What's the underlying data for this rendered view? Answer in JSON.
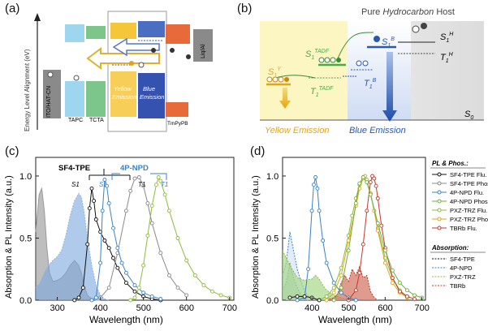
{
  "panel_a": {
    "label": "(a)",
    "ylabel": "Energy Level Alignment (eV)",
    "layers": [
      "ITO/HAT-CN",
      "TAPC",
      "TCTA",
      "Yellow",
      "Emission",
      "Blue",
      "Emission",
      "TmPyPB",
      "Liq/Al"
    ]
  },
  "panel_b": {
    "label": "(b)",
    "host_title_1": "Pure",
    "host_title_2": "Hydrocarbon",
    "host_title_3": "Host",
    "s1h": "S",
    "s1h_sub": "1",
    "s1h_sup": "H",
    "t1h": "T",
    "t1h_sub": "1",
    "t1h_sup": "H",
    "s1b": "S",
    "s1b_sub": "1",
    "s1b_sup": "B",
    "t1b": "T",
    "t1b_sub": "1",
    "t1b_sup": "B",
    "s1tadf": "S",
    "s1tadf_sub": "1",
    "s1tadf_sup": "TADF",
    "t1tadf": "T",
    "t1tadf_sub": "1",
    "t1tadf_sup": "TADF",
    "s1y": "S",
    "s1y_sub": "1",
    "s1y_sup": "Y",
    "s0": "S",
    "s0_sub": "0",
    "yellow_emission": "Yellow Emission",
    "blue_emission": "Blue Emission"
  },
  "panel_c": {
    "label": "(c)",
    "ylabel": "Absorption & PL Intensity (a.u.)",
    "xlabel": "Wavelength (nm)",
    "xticks": [
      "300",
      "400",
      "500",
      "600",
      "700"
    ],
    "yticks": [
      "0.0",
      "0.5",
      "1.0"
    ],
    "ann_sf4": "SF4-TPE",
    "ann_npd": "4P-NPD",
    "ann_s1_black": "S1",
    "ann_t1_black": "T1",
    "ann_s1_blue": "S1",
    "ann_t1_blue": "T1"
  },
  "panel_d": {
    "label": "(d)",
    "ylabel": "Absorption & PL Intensity (a.u.)",
    "xlabel": "Wavelength (nm)",
    "xticks": [
      "400",
      "500",
      "600",
      "700"
    ],
    "yticks": [
      "0.0",
      "0.5",
      "1.0"
    ],
    "legend_title1": "PL & Phos.:",
    "legend1": [
      "SF4-TPE Flu.",
      "SF4-TPE Phos.",
      "4P-NPD Flu.",
      "4P-NPD Phos.",
      "PXZ-TRZ Flu.",
      "PXZ-TRZ Phos.",
      "TBRb Flu."
    ],
    "legend_title2": "Absorption:",
    "legend2": [
      "SF4-TPE",
      "4P-NPD",
      "PXZ-TRZ",
      "TBRb"
    ]
  },
  "colors": {
    "sf4": "#111111",
    "sf4_phos": "#888888",
    "npd": "#3b82c4",
    "npd_phos": "#6fae3a",
    "pxz": "#8dbb3a",
    "pxz_phos": "#d9a820",
    "tbrb": "#c0392b"
  },
  "chart_data": [
    {
      "type": "line",
      "xlabel": "Wavelength (nm)",
      "ylabel": "Absorption & PL Intensity (a.u.)",
      "xlim": [
        250,
        710
      ],
      "ylim": [
        0,
        1.15
      ],
      "series": [
        {
          "name": "SF4-TPE Abs",
          "x": [
            250,
            258,
            264,
            270,
            276,
            282,
            290,
            300,
            310,
            320,
            330,
            340,
            350,
            356,
            362,
            370,
            380,
            390,
            400
          ],
          "y": [
            0.55,
            0.85,
            0.9,
            0.72,
            0.42,
            0.22,
            0.15,
            0.16,
            0.18,
            0.22,
            0.28,
            0.32,
            0.28,
            0.22,
            0.12,
            0.04,
            0.01,
            0,
            0
          ]
        },
        {
          "name": "4P-NPD Abs",
          "x": [
            250,
            260,
            270,
            280,
            290,
            300,
            310,
            320,
            330,
            340,
            350,
            356,
            362,
            370,
            380,
            390,
            400,
            410,
            420
          ],
          "y": [
            0.1,
            0.14,
            0.22,
            0.28,
            0.32,
            0.35,
            0.4,
            0.52,
            0.68,
            0.8,
            0.86,
            0.83,
            0.72,
            0.5,
            0.28,
            0.12,
            0.04,
            0.01,
            0
          ]
        },
        {
          "name": "SF4-TPE Flu.",
          "x": [
            340,
            350,
            360,
            370,
            375,
            380,
            385,
            390,
            400,
            410,
            420,
            430,
            440,
            460,
            480,
            500,
            520,
            540
          ],
          "y": [
            0,
            0.02,
            0.1,
            0.45,
            0.74,
            0.9,
            0.8,
            0.65,
            0.55,
            0.48,
            0.42,
            0.34,
            0.26,
            0.14,
            0.07,
            0.03,
            0.01,
            0
          ]
        },
        {
          "name": "SF4-TPE Phos.",
          "x": [
            400,
            420,
            440,
            460,
            470,
            480,
            490,
            500,
            510,
            520,
            540,
            560,
            580,
            600
          ],
          "y": [
            0.02,
            0.1,
            0.38,
            0.72,
            0.88,
            0.98,
            0.99,
            0.92,
            0.78,
            0.62,
            0.38,
            0.2,
            0.1,
            0.04
          ]
        },
        {
          "name": "4P-NPD Flu.",
          "x": [
            380,
            390,
            400,
            405,
            410,
            415,
            420,
            430,
            440,
            450,
            460,
            480,
            500,
            520,
            540
          ],
          "y": [
            0,
            0.02,
            0.3,
            0.72,
            0.97,
            0.92,
            0.78,
            0.58,
            0.42,
            0.3,
            0.22,
            0.12,
            0.06,
            0.03,
            0.01
          ]
        },
        {
          "name": "4P-NPD Phos.",
          "x": [
            470,
            480,
            490,
            500,
            510,
            520,
            530,
            535,
            540,
            550,
            560,
            580,
            600,
            620,
            640,
            660,
            680,
            700
          ],
          "y": [
            0,
            0.02,
            0.1,
            0.28,
            0.52,
            0.76,
            0.93,
            0.99,
            0.96,
            0.85,
            0.72,
            0.5,
            0.32,
            0.2,
            0.12,
            0.07,
            0.04,
            0.02
          ]
        }
      ]
    },
    {
      "type": "line",
      "xlabel": "Wavelength (nm)",
      "ylabel": "Absorption & PL Intensity (a.u.)",
      "xlim": [
        320,
        710
      ],
      "ylim": [
        0,
        1.15
      ],
      "series": [
        {
          "name": "SF4-TPE Abs",
          "x": [
            320,
            330,
            340,
            350,
            360,
            370,
            380,
            390
          ],
          "y": [
            0.08,
            0.14,
            0.3,
            0.18,
            0.1,
            0.04,
            0.01,
            0
          ]
        },
        {
          "name": "4P-NPD Abs",
          "x": [
            320,
            330,
            340,
            350,
            360,
            370,
            380,
            390,
            400,
            410
          ],
          "y": [
            0.2,
            0.3,
            0.55,
            0.4,
            0.25,
            0.15,
            0.08,
            0.03,
            0.01,
            0
          ]
        },
        {
          "name": "PXZ-TRZ Abs",
          "x": [
            320,
            340,
            360,
            380,
            400,
            410,
            420,
            430,
            440,
            460,
            480,
            500
          ],
          "y": [
            0.4,
            0.28,
            0.18,
            0.16,
            0.17,
            0.2,
            0.17,
            0.12,
            0.08,
            0.04,
            0.02,
            0
          ]
        },
        {
          "name": "TBRb Abs",
          "x": [
            440,
            460,
            470,
            480,
            490,
            500,
            510,
            520,
            530,
            540,
            550,
            560,
            570,
            580
          ],
          "y": [
            0,
            0.02,
            0.05,
            0.14,
            0.2,
            0.15,
            0.25,
            0.2,
            0.27,
            0.18,
            0.2,
            0.07,
            0.02,
            0
          ]
        },
        {
          "name": "4P-NPD Flu.",
          "x": [
            360,
            380,
            390,
            400,
            405,
            410,
            415,
            420,
            430,
            440,
            460,
            480,
            500,
            520
          ],
          "y": [
            0,
            0.02,
            0.25,
            0.72,
            0.93,
            0.99,
            0.9,
            0.72,
            0.48,
            0.3,
            0.14,
            0.06,
            0.02,
            0
          ]
        },
        {
          "name": "PXZ-TRZ Flu.",
          "x": [
            420,
            440,
            460,
            480,
            500,
            510,
            520,
            530,
            540,
            550,
            560,
            570,
            580,
            600,
            620,
            640,
            660
          ],
          "y": [
            0,
            0.03,
            0.1,
            0.26,
            0.52,
            0.68,
            0.82,
            0.93,
            0.99,
            0.96,
            0.86,
            0.72,
            0.58,
            0.34,
            0.18,
            0.08,
            0.03
          ]
        },
        {
          "name": "PXZ-TRZ Phos.",
          "x": [
            440,
            460,
            480,
            500,
            520,
            530,
            540,
            545,
            550,
            560,
            570,
            580,
            600,
            620,
            640,
            660
          ],
          "y": [
            0,
            0.06,
            0.2,
            0.48,
            0.76,
            0.9,
            0.98,
            1.0,
            0.97,
            0.86,
            0.72,
            0.56,
            0.3,
            0.14,
            0.06,
            0.02
          ]
        },
        {
          "name": "TBRb Flu.",
          "x": [
            500,
            520,
            530,
            540,
            550,
            560,
            565,
            570,
            575,
            580,
            590,
            600,
            620,
            640,
            660,
            680
          ],
          "y": [
            0,
            0.08,
            0.22,
            0.45,
            0.72,
            0.95,
            1.0,
            0.98,
            0.92,
            0.82,
            0.6,
            0.42,
            0.18,
            0.07,
            0.03,
            0.01
          ]
        },
        {
          "name": "SF4-TPE Flu.",
          "x": [
            340,
            360,
            380,
            400,
            420
          ],
          "y": [
            0.02,
            0.03,
            0.03,
            0.02,
            0
          ]
        },
        {
          "name": "4P-NPD Phos.",
          "x": [
            460,
            480,
            500,
            520,
            530,
            540,
            550,
            560,
            580,
            600,
            620,
            640,
            660,
            680,
            700
          ],
          "y": [
            0,
            0.1,
            0.4,
            0.78,
            0.94,
            0.99,
            0.95,
            0.85,
            0.62,
            0.4,
            0.24,
            0.14,
            0.08,
            0.04,
            0.02
          ]
        }
      ]
    }
  ]
}
